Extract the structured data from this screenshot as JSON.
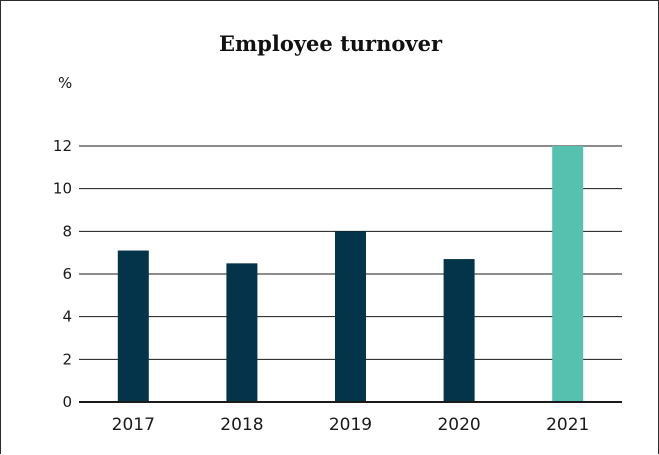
{
  "chart_data": {
    "type": "bar",
    "title": "Employee turnover",
    "ylabel": "%",
    "xlabel": "",
    "categories": [
      "2017",
      "2018",
      "2019",
      "2020",
      "2021"
    ],
    "values": [
      7.1,
      6.5,
      8.0,
      6.7,
      12.0
    ],
    "ylim": [
      0,
      12
    ],
    "yticks": [
      0,
      2,
      4,
      6,
      8,
      10,
      12
    ],
    "grid": true,
    "legend": "none",
    "colors": {
      "bar": "#04344a",
      "highlight": "#55c1ae",
      "grid": "#1a1a1a"
    },
    "highlight_index": 4
  }
}
